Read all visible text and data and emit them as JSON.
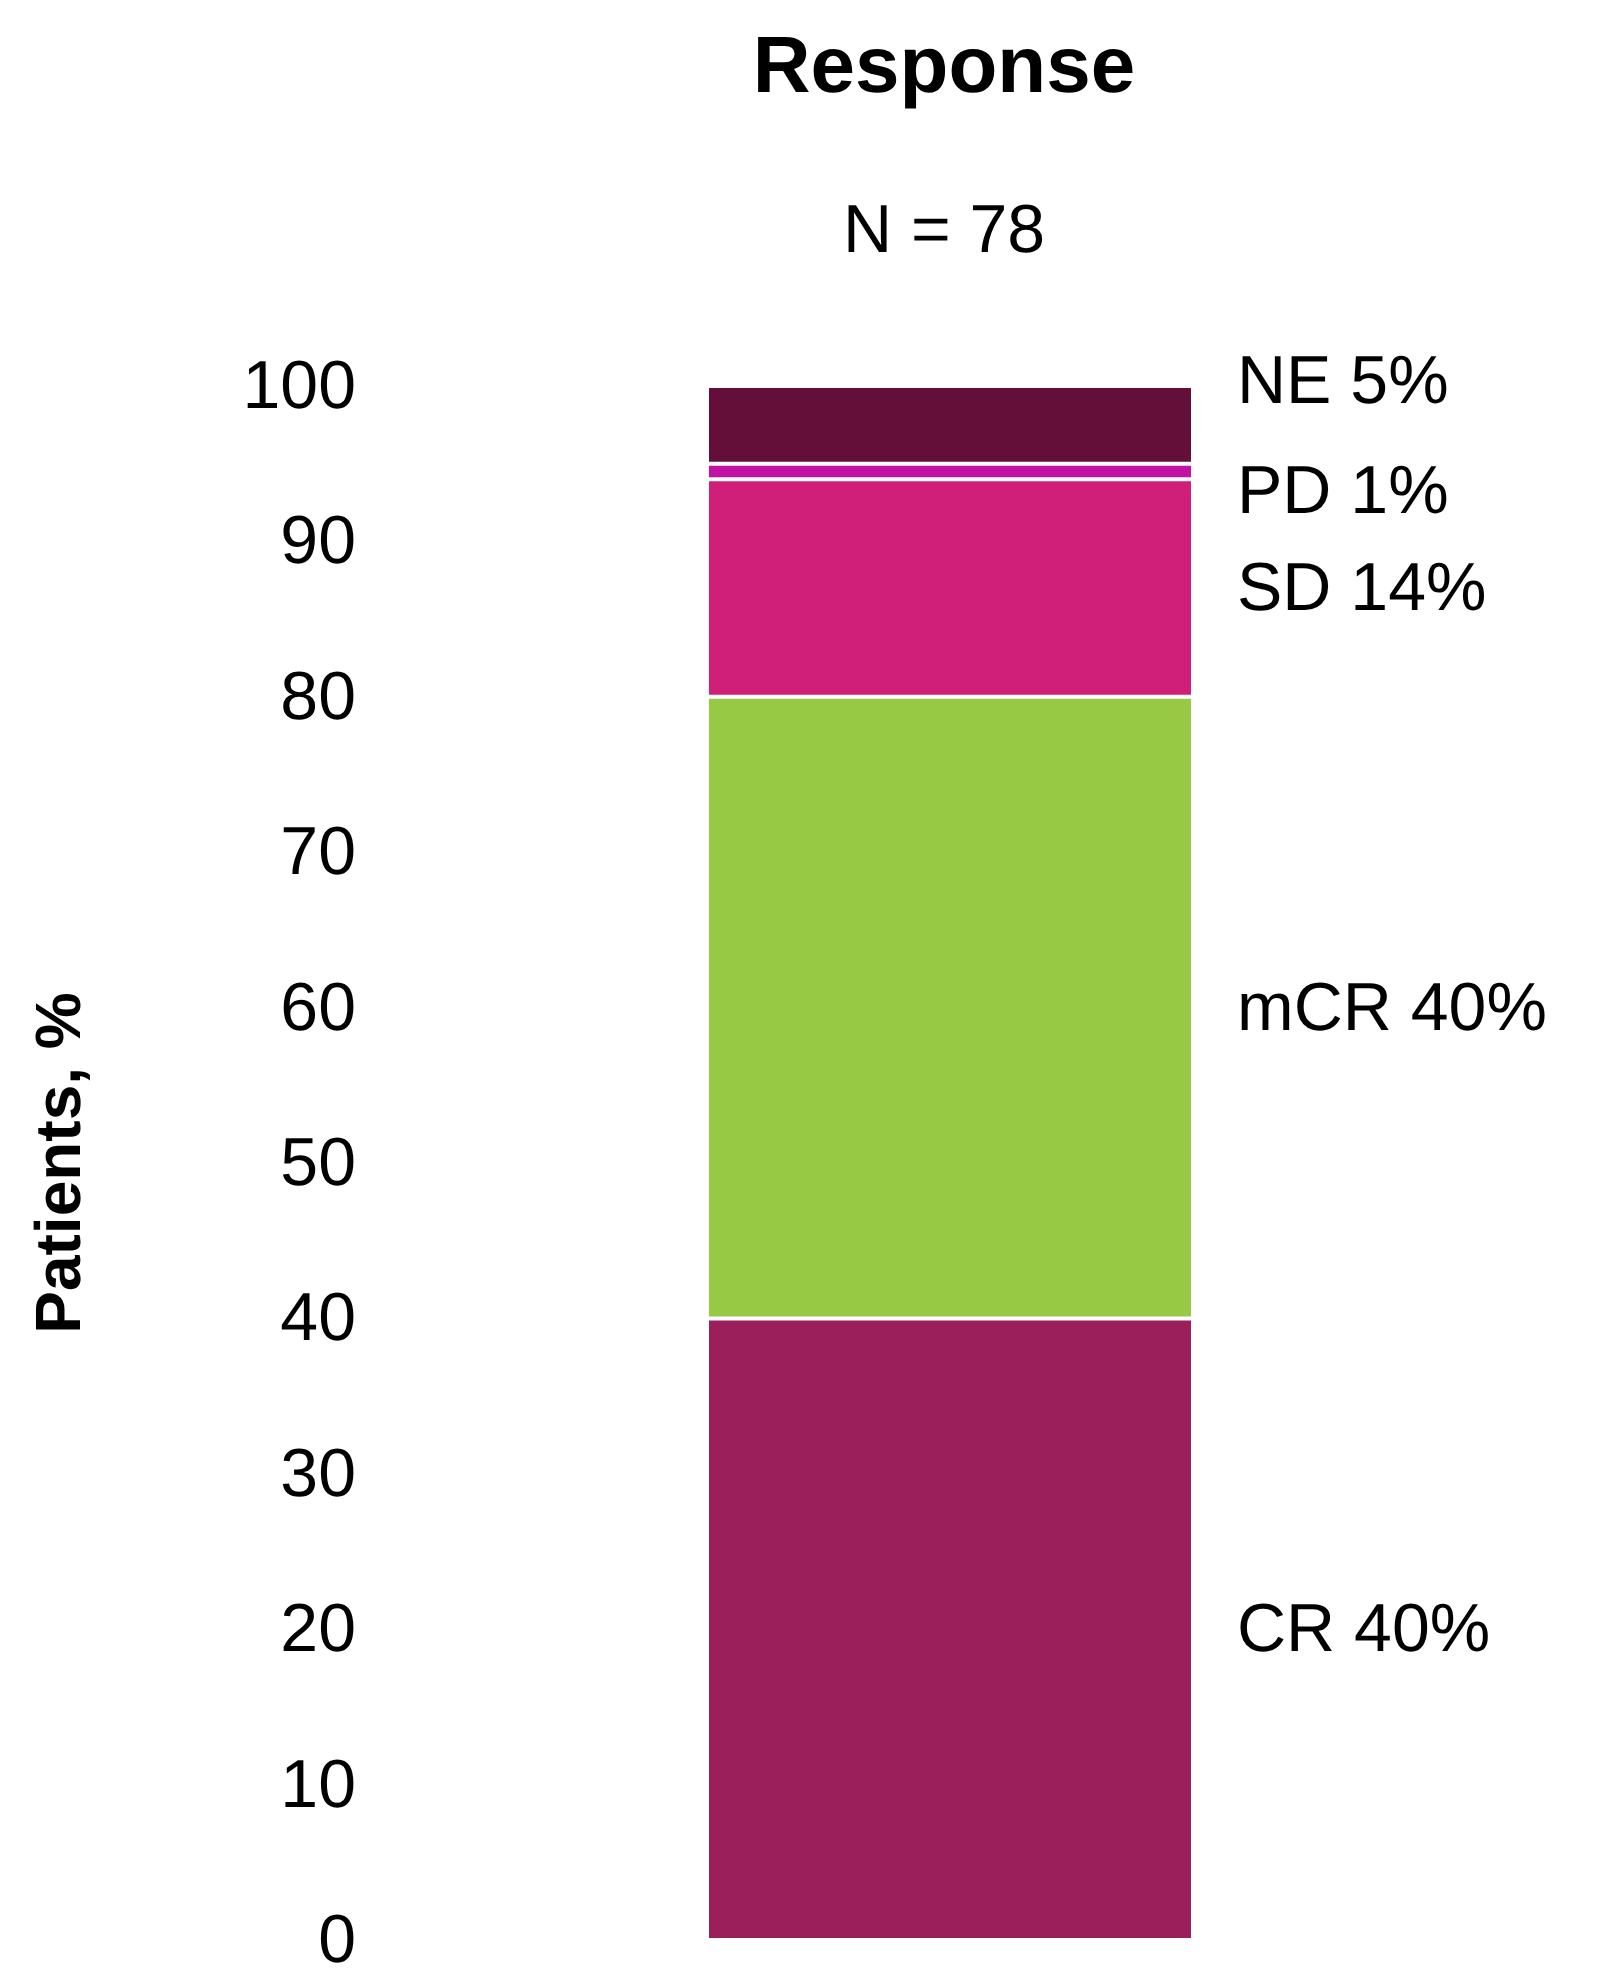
{
  "chart_data": {
    "type": "bar",
    "title": "Response",
    "subtitle": "N = 78",
    "ylabel": "Patients, %",
    "categories": [
      null
    ],
    "stacked": true,
    "series": [
      {
        "name": "CR",
        "color": "#9b1f5b",
        "values": [
          40
        ],
        "value_labels": [
          "40%"
        ]
      },
      {
        "name": "mCR",
        "color": "#98c944",
        "values": [
          40
        ],
        "value_labels": [
          "40%"
        ]
      },
      {
        "name": "SD",
        "color": "#d01f78",
        "values": [
          14
        ],
        "value_labels": [
          "14%"
        ]
      },
      {
        "name": "PD",
        "color": "#c112a3",
        "values": [
          1
        ],
        "value_labels": [
          "1%"
        ]
      },
      {
        "name": "NE",
        "color": "#640e3a",
        "values": [
          5
        ],
        "value_labels": [
          "5%"
        ]
      }
    ],
    "ylim": [
      0,
      100
    ],
    "yticks": [
      0,
      10,
      20,
      30,
      40,
      50,
      60,
      70,
      80,
      90,
      100
    ],
    "grid": false,
    "legend": false
  }
}
